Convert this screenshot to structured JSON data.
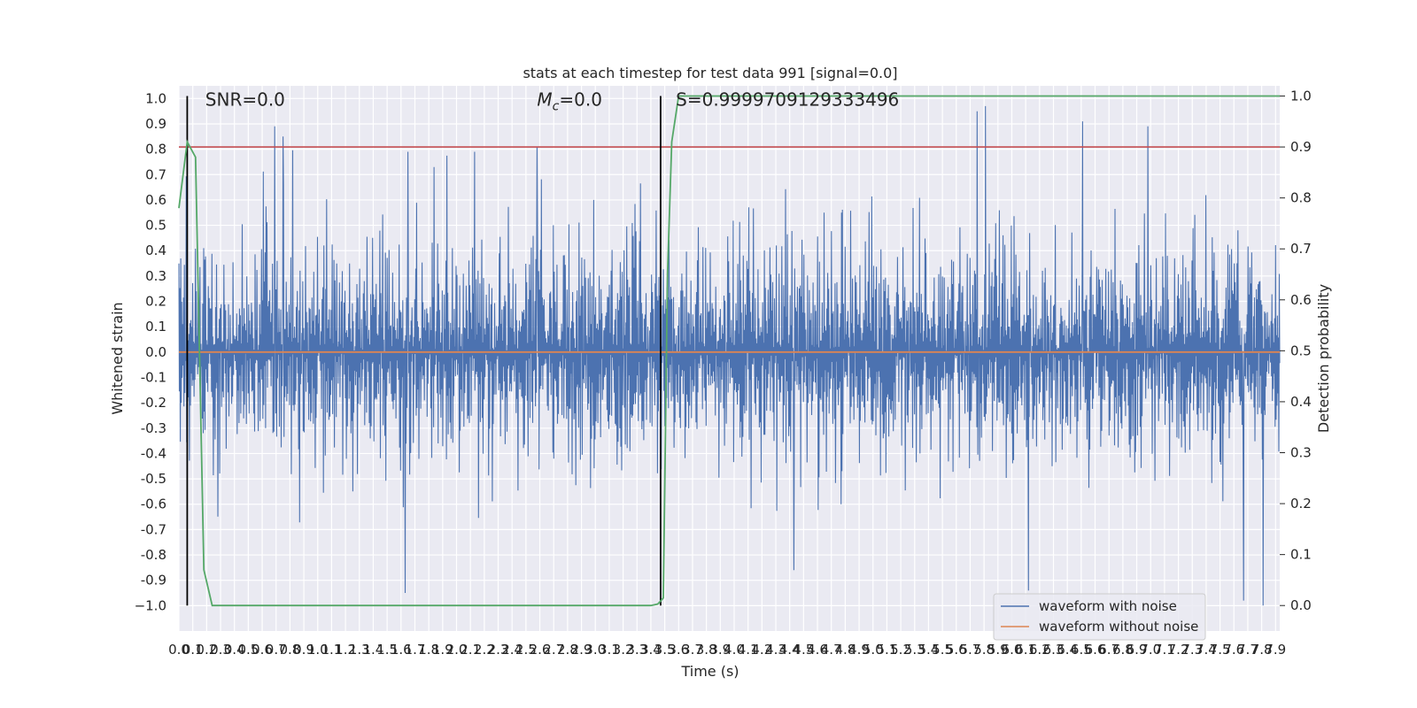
{
  "chart_data": {
    "type": "line",
    "title": "stats at each timestep for test data 991 [signal=0.0]",
    "xlabel": "Time (s)",
    "ylabel": "Whitened strain",
    "y2label": "Detection probability",
    "xlim": [
      0.0,
      7.93
    ],
    "ylim": [
      -1.1,
      1.05
    ],
    "y2lim": [
      -0.05,
      1.02
    ],
    "x_ticks": [
      0.0,
      0.1,
      0.2,
      0.3,
      0.4,
      0.5,
      0.6,
      0.7,
      0.8,
      0.9,
      1.0,
      1.1,
      1.2,
      1.3,
      1.4,
      1.5,
      1.6,
      1.7,
      1.8,
      1.9,
      2.0,
      2.1,
      2.2,
      2.3,
      2.4,
      2.5,
      2.6,
      2.7,
      2.8,
      2.9,
      3.0,
      3.1,
      3.2,
      3.3,
      3.4,
      3.5,
      3.6,
      3.7,
      3.8,
      3.9,
      4.0,
      4.1,
      4.2,
      4.3,
      4.4,
      4.5,
      4.6,
      4.7,
      4.8,
      4.9,
      5.0,
      5.1,
      5.2,
      5.3,
      5.4,
      5.5,
      5.6,
      5.7,
      5.8,
      5.9,
      6.0,
      6.1,
      6.2,
      6.3,
      6.4,
      6.5,
      6.6,
      6.7,
      6.8,
      6.9,
      7.0,
      7.1,
      7.2,
      7.3,
      7.4,
      7.5,
      7.6,
      7.7,
      7.8,
      7.9
    ],
    "y_ticks": [
      1.0,
      0.9,
      0.8,
      0.7,
      0.6,
      0.5,
      0.4,
      0.3,
      0.2,
      0.1,
      0.0,
      -0.1,
      -0.2,
      -0.3,
      -0.4,
      -0.5,
      -0.6,
      -0.7,
      -0.8,
      -0.9,
      -1.0
    ],
    "y_tick_labels": [
      "1.0",
      "0.9",
      "0.8",
      "0.7",
      "0.6",
      "0.5",
      "0.4",
      "0.3",
      "0.2",
      "0.1",
      "0.0",
      "-0.1",
      "-0.2",
      "-0.3",
      "-0.4",
      "-0.5",
      "-0.6",
      "-0.7",
      "-0.8",
      "-0.9",
      "−1.0"
    ],
    "y2_ticks": [
      1.0,
      0.9,
      0.8,
      0.7,
      0.6,
      0.5,
      0.4,
      0.3,
      0.2,
      0.1,
      0.0
    ],
    "y2_tick_labels": [
      "1.0",
      "0.9",
      "0.8",
      "0.7",
      "0.6",
      "0.5",
      "0.4",
      "0.3",
      "0.2",
      "0.1",
      "0.0"
    ],
    "grid": true,
    "legend_position": "bottom-right",
    "series": [
      {
        "name": "waveform with noise",
        "color": "#4c72b0",
        "description": "dense whitened strain noise, amplitude ±0.5 typical, peaks ~±0.9",
        "noise_amplitude": 0.42,
        "peaks": [
          [
            0.69,
            0.89
          ],
          [
            0.75,
            0.85
          ],
          [
            1.65,
            0.79
          ],
          [
            2.13,
            0.79
          ],
          [
            2.58,
            0.81
          ],
          [
            5.75,
            0.95
          ],
          [
            5.81,
            0.97
          ],
          [
            6.51,
            0.91
          ],
          [
            6.98,
            0.89
          ],
          [
            7.67,
            0.88
          ],
          [
            1.63,
            -0.95
          ],
          [
            4.43,
            -0.86
          ],
          [
            6.12,
            -0.94
          ],
          [
            7.67,
            -0.98
          ],
          [
            7.81,
            -1.0
          ]
        ]
      },
      {
        "name": "waveform without noise",
        "color": "#dd8452",
        "x": [
          0.0,
          7.93
        ],
        "y": [
          0.0,
          0.0
        ]
      },
      {
        "name": "Detection probability",
        "color": "#55a868",
        "axis": "right",
        "x": [
          0.0,
          0.06,
          0.12,
          0.18,
          0.24,
          3.4,
          3.45,
          3.49,
          3.52,
          3.55,
          3.6,
          3.66,
          7.93
        ],
        "y": [
          0.78,
          0.91,
          0.88,
          0.07,
          0.0,
          0.0,
          0.003,
          0.015,
          0.65,
          0.91,
          1.0,
          1.0,
          1.0
        ]
      }
    ],
    "threshold_line": {
      "y2": 0.9,
      "color": "#c44e52"
    },
    "marker_lines": [
      {
        "x": 0.06,
        "y2_from": 0.0,
        "y2_to": 1.0,
        "color": "#000000"
      },
      {
        "x": 3.47,
        "y2_from": 0.0,
        "y2_to": 1.0,
        "color": "#000000"
      }
    ],
    "annotations": [
      {
        "text_prefix": "SNR=0.0",
        "x": 0.19,
        "y": 1.0
      },
      {
        "mc_symbol": "M",
        "mc_subscript": "c",
        "mc_suffix": "=0.0",
        "x": 2.58,
        "y": 1.0
      },
      {
        "text_prefix": "S=0.9999709129333496",
        "x": 3.58,
        "y": 1.0
      }
    ],
    "colors": {
      "background": "#eaeaf2",
      "grid": "#ffffff",
      "noise": "#4c72b0",
      "clean": "#dd8452",
      "probability": "#55a868",
      "threshold": "#c44e52"
    }
  }
}
